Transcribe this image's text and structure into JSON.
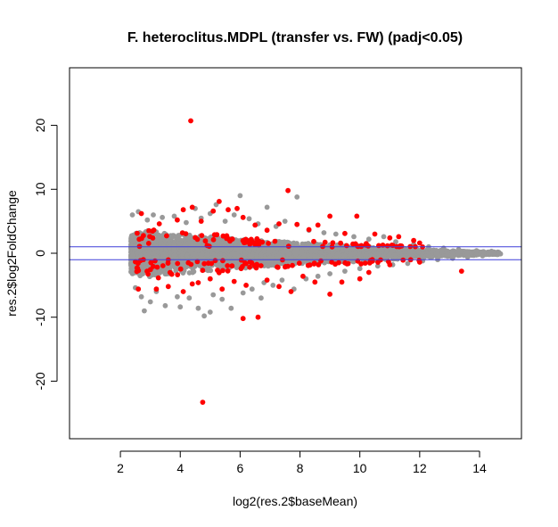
{
  "chart_data": {
    "type": "scatter",
    "title": "F. heteroclitus.MDPL (transfer vs. FW) (padj<0.05)",
    "xlabel": "log2(res.2$baseMean)",
    "ylabel": "res.2$log2FoldChange",
    "xlim": [
      0.3,
      15.4
    ],
    "ylim": [
      -29,
      29
    ],
    "xticks": [
      2,
      4,
      6,
      8,
      10,
      12,
      14
    ],
    "yticks": [
      -20,
      -10,
      0,
      10,
      20
    ],
    "hlines": [
      1,
      -1
    ],
    "hline_color": "#3f3fd9",
    "colors": {
      "non_significant": "#999999",
      "significant": "#ff0000"
    },
    "notes": "Dense MA-plot; the grey non-significant cloud is summarized by its envelope plus representative points.",
    "density_envelope": {
      "x": [
        2.4,
        2.8,
        3.2,
        3.6,
        4.0,
        4.5,
        5.0,
        5.5,
        6.0,
        6.5,
        7.0,
        7.5,
        8.0,
        8.5,
        9.0,
        9.5,
        10.0,
        10.5,
        11.0,
        11.5,
        12.0,
        12.5,
        13.0,
        13.5,
        14.0,
        14.5
      ],
      "upper": [
        3.0,
        3.6,
        3.4,
        3.2,
        3.0,
        2.8,
        2.6,
        2.4,
        2.2,
        2.0,
        1.9,
        1.8,
        1.6,
        1.5,
        1.4,
        1.3,
        1.2,
        1.0,
        0.9,
        0.8,
        0.6,
        0.5,
        0.4,
        0.3,
        0.25,
        0.2
      ],
      "lower": [
        -3.2,
        -3.8,
        -3.6,
        -3.4,
        -3.2,
        -3.0,
        -2.8,
        -2.6,
        -2.4,
        -2.2,
        -2.0,
        -1.9,
        -1.7,
        -1.6,
        -1.5,
        -1.4,
        -1.3,
        -1.1,
        -1.0,
        -0.9,
        -0.7,
        -0.6,
        -0.5,
        -0.4,
        -0.3,
        -0.2
      ]
    },
    "series": [
      {
        "name": "",
        "color": "#999999",
        "points": [
          [
            2.4,
            6.0
          ],
          [
            2.6,
            6.5
          ],
          [
            2.9,
            5.2
          ],
          [
            3.1,
            6.0
          ],
          [
            3.4,
            5.6
          ],
          [
            3.8,
            5.8
          ],
          [
            4.2,
            4.8
          ],
          [
            4.5,
            7.0
          ],
          [
            4.7,
            5.5
          ],
          [
            5.0,
            6.2
          ],
          [
            5.2,
            7.6
          ],
          [
            5.5,
            5.0
          ],
          [
            5.8,
            6.0
          ],
          [
            6.0,
            9.0
          ],
          [
            6.3,
            5.4
          ],
          [
            6.6,
            4.6
          ],
          [
            6.9,
            7.2
          ],
          [
            7.2,
            4.2
          ],
          [
            7.5,
            5.0
          ],
          [
            7.9,
            8.8
          ],
          [
            8.3,
            3.6
          ],
          [
            8.8,
            3.2
          ],
          [
            9.2,
            3.0
          ],
          [
            9.8,
            2.6
          ],
          [
            10.3,
            2.2
          ],
          [
            10.8,
            2.6
          ],
          [
            11.2,
            1.8
          ],
          [
            11.8,
            1.4
          ],
          [
            12.3,
            1.0
          ],
          [
            12.8,
            0.8
          ],
          [
            13.3,
            0.6
          ],
          [
            13.9,
            0.4
          ],
          [
            14.4,
            0.3
          ],
          [
            14.7,
            -0.1
          ],
          [
            2.5,
            -5.4
          ],
          [
            2.7,
            -6.8
          ],
          [
            3.0,
            -7.6
          ],
          [
            3.2,
            -6.0
          ],
          [
            3.5,
            -8.2
          ],
          [
            3.9,
            -6.8
          ],
          [
            4.3,
            -7.0
          ],
          [
            4.6,
            -8.6
          ],
          [
            4.8,
            -9.8
          ],
          [
            5.1,
            -6.5
          ],
          [
            5.4,
            -7.2
          ],
          [
            5.7,
            -8.6
          ],
          [
            6.1,
            -6.2
          ],
          [
            6.4,
            -5.6
          ],
          [
            6.8,
            -4.6
          ],
          [
            7.1,
            -5.0
          ],
          [
            7.4,
            -4.2
          ],
          [
            7.8,
            -5.6
          ],
          [
            8.2,
            -4.0
          ],
          [
            8.6,
            -3.6
          ],
          [
            9.0,
            -3.2
          ],
          [
            9.5,
            -2.8
          ],
          [
            10.0,
            -2.4
          ],
          [
            10.6,
            -2.0
          ],
          [
            11.1,
            -1.8
          ],
          [
            11.6,
            -1.6
          ],
          [
            12.1,
            -1.2
          ],
          [
            12.6,
            -1.0
          ],
          [
            13.1,
            -0.8
          ],
          [
            13.6,
            -0.6
          ],
          [
            14.1,
            -0.4
          ],
          [
            4.0,
            -8.4
          ],
          [
            5.0,
            -9.2
          ],
          [
            6.7,
            -7.0
          ],
          [
            2.8,
            -9.0
          ]
        ]
      },
      {
        "name": "",
        "color": "#ff0000",
        "points": [
          [
            4.35,
            20.7
          ],
          [
            4.75,
            -23.3
          ],
          [
            2.7,
            6.2
          ],
          [
            3.3,
            4.6
          ],
          [
            3.9,
            5.2
          ],
          [
            4.1,
            6.8
          ],
          [
            4.4,
            7.2
          ],
          [
            4.7,
            5.0
          ],
          [
            5.1,
            6.6
          ],
          [
            5.3,
            8.1
          ],
          [
            5.6,
            6.8
          ],
          [
            5.9,
            7.0
          ],
          [
            6.1,
            5.6
          ],
          [
            6.5,
            4.4
          ],
          [
            6.9,
            3.6
          ],
          [
            7.3,
            4.6
          ],
          [
            7.6,
            9.8
          ],
          [
            7.9,
            4.5
          ],
          [
            8.3,
            3.7
          ],
          [
            8.6,
            4.4
          ],
          [
            9.0,
            5.8
          ],
          [
            9.5,
            3.1
          ],
          [
            9.9,
            5.8
          ],
          [
            10.5,
            3.0
          ],
          [
            11.0,
            2.4
          ],
          [
            11.3,
            2.6
          ],
          [
            11.8,
            2.0
          ],
          [
            12.0,
            1.6
          ],
          [
            2.6,
            -5.6
          ],
          [
            3.2,
            -5.6
          ],
          [
            3.6,
            -5.2
          ],
          [
            4.1,
            -6.0
          ],
          [
            4.4,
            -4.8
          ],
          [
            4.6,
            -4.6
          ],
          [
            5.0,
            -4.0
          ],
          [
            5.4,
            -5.6
          ],
          [
            5.8,
            -4.4
          ],
          [
            6.1,
            -10.2
          ],
          [
            6.2,
            -5.0
          ],
          [
            6.6,
            -10.0
          ],
          [
            6.9,
            -4.2
          ],
          [
            7.3,
            -5.2
          ],
          [
            7.7,
            -6.0
          ],
          [
            8.1,
            -3.6
          ],
          [
            8.5,
            -4.5
          ],
          [
            9.0,
            -6.4
          ],
          [
            9.4,
            -4.5
          ],
          [
            10.0,
            -4.0
          ],
          [
            10.3,
            -3.0
          ],
          [
            11.0,
            -1.8
          ],
          [
            12.0,
            -1.4
          ],
          [
            13.4,
            -2.8
          ]
        ]
      }
    ]
  }
}
